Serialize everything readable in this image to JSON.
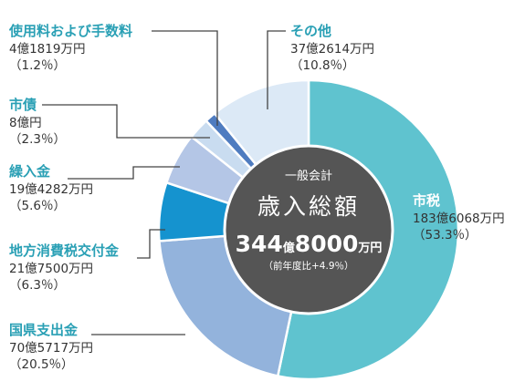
{
  "chart_data": {
    "type": "pie",
    "donut": true,
    "start_angle_deg": 0,
    "direction": "clockwise",
    "center": {
      "subtitle": "一般会計",
      "title": "歳入総額",
      "total_oku": "344",
      "total_oku_unit": "億",
      "total_man": "8000",
      "total_man_unit": "万円",
      "yoy": "（前年度比+4.9％）"
    },
    "slices": [
      {
        "label": "市税",
        "amount": "183億6068万円",
        "percent_label": "（53.3％）",
        "value": 53.3,
        "color": "#5fc3cf",
        "label_color": "#ffffff"
      },
      {
        "label": "国県支出金",
        "amount": "70億5717万円",
        "percent_label": "（20.5％）",
        "value": 20.5,
        "color": "#93b3dc",
        "label_color": "#2aa0b5"
      },
      {
        "label": "地方消費税交付金",
        "amount": "21億7500万円",
        "percent_label": "（6.3％）",
        "value": 6.3,
        "color": "#1593cf",
        "label_color": "#2aa0b5"
      },
      {
        "label": "繰入金",
        "amount": "19億4282万円",
        "percent_label": "（5.6％）",
        "value": 5.6,
        "color": "#b4c6e6",
        "label_color": "#2aa0b5"
      },
      {
        "label": "市債",
        "amount": "8億円",
        "percent_label": "（2.3％）",
        "value": 2.3,
        "color": "#c9dcf0",
        "label_color": "#2aa0b5"
      },
      {
        "label": "使用料および手数料",
        "amount": "4億1819万円",
        "percent_label": "（1.2％）",
        "value": 1.2,
        "color": "#4f7cc0",
        "label_color": "#2aa0b5"
      },
      {
        "label": "その他",
        "amount": "37億2614万円",
        "percent_label": "（10.8％）",
        "value": 10.8,
        "color": "#dce9f6",
        "label_color": "#2aa0b5"
      }
    ],
    "colors": {
      "center_fill": "#555555",
      "leader_line": "#444444",
      "separator": "#ffffff"
    }
  }
}
